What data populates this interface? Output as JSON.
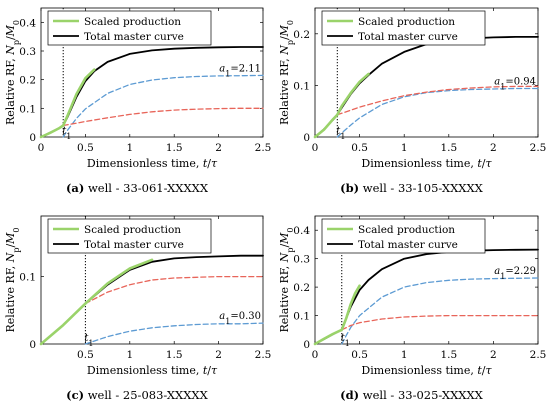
{
  "chart_data": [
    {
      "type": "line",
      "caption": "(a) well - 33-061-XXXXX",
      "ylabel": "Relative RF, Np/M0",
      "xlabel": "Dimensionless time, t/τ",
      "xlim": [
        0,
        2.5
      ],
      "ylim": [
        0,
        0.45
      ],
      "xticks": [
        0,
        0.5,
        1,
        1.5,
        2,
        2.5
      ],
      "xtick_labels": [
        "0",
        "0.5",
        "1",
        "1.5",
        "2",
        "2.5"
      ],
      "yticks": [
        0,
        0.1,
        0.2,
        0.3,
        0.4
      ],
      "ytick_labels": [
        "0",
        "0.1",
        "0.2",
        "0.3",
        "0.4"
      ],
      "t1": 0.25,
      "vline_label": "t1",
      "a1_label": "a1=2.11",
      "legend": [
        "Scaled production",
        "Total master curve"
      ],
      "series": [
        {
          "name": "Scaled production",
          "color": "#9ad36a",
          "style": "solid",
          "x": [
            0,
            0.1,
            0.2,
            0.25,
            0.3,
            0.4,
            0.5,
            0.6
          ],
          "y": [
            0,
            0.014,
            0.03,
            0.04,
            0.075,
            0.15,
            0.205,
            0.235
          ]
        },
        {
          "name": "Total master curve",
          "color": "#000000",
          "style": "solid",
          "x": [
            0,
            0.1,
            0.2,
            0.25,
            0.3,
            0.4,
            0.5,
            0.6,
            0.75,
            1.0,
            1.25,
            1.5,
            1.75,
            2.0,
            2.25,
            2.5
          ],
          "y": [
            0,
            0.015,
            0.03,
            0.04,
            0.07,
            0.14,
            0.195,
            0.23,
            0.262,
            0.29,
            0.302,
            0.308,
            0.311,
            0.313,
            0.314,
            0.314
          ]
        },
        {
          "color": "#5d9bd3",
          "style": "dashed",
          "x": [
            0.25,
            0.3,
            0.4,
            0.5,
            0.75,
            1.0,
            1.25,
            1.5,
            1.75,
            2.0,
            2.25,
            2.5
          ],
          "y": [
            0,
            0.024,
            0.065,
            0.098,
            0.152,
            0.183,
            0.199,
            0.207,
            0.211,
            0.213,
            0.214,
            0.215
          ]
        },
        {
          "color": "#e8655a",
          "style": "dashed",
          "x": [
            0.25,
            0.4,
            0.5,
            0.75,
            1.0,
            1.25,
            1.5,
            1.75,
            2.0,
            2.25,
            2.5
          ],
          "y": [
            0.04,
            0.048,
            0.054,
            0.067,
            0.079,
            0.088,
            0.094,
            0.097,
            0.099,
            0.1,
            0.1
          ]
        }
      ]
    },
    {
      "type": "line",
      "caption": "(b) well - 33-105-XXXXX",
      "ylabel": "Relative RF, Np/M0",
      "xlabel": "Dimensionless time, t/τ",
      "xlim": [
        0,
        2.5
      ],
      "ylim": [
        0,
        0.25
      ],
      "xticks": [
        0,
        0.5,
        1,
        1.5,
        2,
        2.5
      ],
      "xtick_labels": [
        "0",
        "0.5",
        "1",
        "1.5",
        "2",
        "2.5"
      ],
      "yticks": [
        0,
        0.1,
        0.2
      ],
      "ytick_labels": [
        "0",
        "0.1",
        "0.2"
      ],
      "t1": 0.25,
      "vline_label": "t1",
      "a1_label": "a1=0.94",
      "legend": [
        "Scaled production",
        "Total master curve"
      ],
      "series": [
        {
          "name": "Scaled production",
          "color": "#9ad36a",
          "style": "solid",
          "x": [
            0,
            0.1,
            0.2,
            0.25,
            0.3,
            0.4,
            0.5,
            0.6
          ],
          "y": [
            0,
            0.014,
            0.034,
            0.043,
            0.06,
            0.085,
            0.107,
            0.122
          ]
        },
        {
          "name": "Total master curve",
          "color": "#000000",
          "style": "solid",
          "x": [
            0,
            0.1,
            0.2,
            0.25,
            0.3,
            0.4,
            0.5,
            0.6,
            0.75,
            1.0,
            1.25,
            1.5,
            1.75,
            2.0,
            2.25,
            2.5
          ],
          "y": [
            0,
            0.015,
            0.033,
            0.043,
            0.057,
            0.083,
            0.104,
            0.12,
            0.142,
            0.165,
            0.18,
            0.187,
            0.191,
            0.193,
            0.194,
            0.194
          ]
        },
        {
          "color": "#5d9bd3",
          "style": "dashed",
          "x": [
            0.25,
            0.3,
            0.4,
            0.5,
            0.75,
            1.0,
            1.25,
            1.5,
            1.75,
            2.0,
            2.25,
            2.5
          ],
          "y": [
            0,
            0.008,
            0.023,
            0.037,
            0.063,
            0.078,
            0.086,
            0.09,
            0.092,
            0.093,
            0.094,
            0.094
          ]
        },
        {
          "color": "#e8655a",
          "style": "dashed",
          "x": [
            0.25,
            0.4,
            0.5,
            0.75,
            1.0,
            1.25,
            1.5,
            1.75,
            2.0,
            2.25,
            2.5
          ],
          "y": [
            0.043,
            0.052,
            0.058,
            0.07,
            0.08,
            0.087,
            0.092,
            0.095,
            0.097,
            0.098,
            0.098
          ]
        }
      ]
    },
    {
      "type": "line",
      "caption": "(c) well - 25-083-XXXXX",
      "ylabel": "Relative RF, Np/M0",
      "xlabel": "Dimensionless time, t/τ",
      "xlim": [
        0,
        2.5
      ],
      "ylim": [
        0,
        0.19
      ],
      "xticks": [
        0.5,
        1,
        1.5,
        2,
        2.5
      ],
      "xtick_labels": [
        "0.5",
        "1",
        "1.5",
        "2",
        "2.5"
      ],
      "yticks": [
        0,
        0.1
      ],
      "ytick_labels": [
        "0",
        "0.1"
      ],
      "t1": 0.5,
      "vline_label": "t1",
      "a1_label": "a1=0.30",
      "legend": [
        "Scaled production",
        "Total master curve"
      ],
      "series": [
        {
          "name": "Scaled production",
          "color": "#9ad36a",
          "style": "solid",
          "x": [
            0,
            0.25,
            0.5,
            0.75,
            1.0,
            1.25
          ],
          "y": [
            0,
            0.028,
            0.06,
            0.09,
            0.112,
            0.125
          ]
        },
        {
          "name": "Total master curve",
          "color": "#000000",
          "style": "solid",
          "x": [
            0,
            0.25,
            0.5,
            0.75,
            1.0,
            1.25,
            1.5,
            1.75,
            2.0,
            2.25,
            2.5
          ],
          "y": [
            0,
            0.028,
            0.06,
            0.088,
            0.11,
            0.122,
            0.127,
            0.129,
            0.13,
            0.131,
            0.131
          ]
        },
        {
          "color": "#5d9bd3",
          "style": "dashed",
          "x": [
            0.5,
            0.75,
            1.0,
            1.25,
            1.5,
            1.75,
            2.0,
            2.25,
            2.5
          ],
          "y": [
            0,
            0.011,
            0.019,
            0.024,
            0.027,
            0.029,
            0.03,
            0.03,
            0.031
          ]
        },
        {
          "color": "#e8655a",
          "style": "dashed",
          "x": [
            0.5,
            0.75,
            1.0,
            1.25,
            1.5,
            1.75,
            2.0,
            2.25,
            2.5
          ],
          "y": [
            0.06,
            0.077,
            0.088,
            0.095,
            0.098,
            0.099,
            0.1,
            0.1,
            0.1
          ]
        }
      ]
    },
    {
      "type": "line",
      "caption": "(d) well - 33-025-XXXXX",
      "ylabel": "Relative RF, Np/M0",
      "xlabel": "Dimensionless time, t/τ",
      "xlim": [
        0,
        2.5
      ],
      "ylim": [
        0,
        0.45
      ],
      "xticks": [
        0,
        0.5,
        1,
        1.5,
        2,
        2.5
      ],
      "xtick_labels": [
        "0",
        "0.5",
        "1",
        "1.5",
        "2",
        "2.5"
      ],
      "yticks": [
        0,
        0.1,
        0.2,
        0.3,
        0.4
      ],
      "ytick_labels": [
        "0",
        "0.1",
        "0.2",
        "0.3",
        "0.4"
      ],
      "t1": 0.3,
      "vline_label": "t1",
      "a1_label": "a1=2.29",
      "legend": [
        "Scaled production",
        "Total master curve"
      ],
      "series": [
        {
          "name": "Scaled production",
          "color": "#9ad36a",
          "style": "solid",
          "x": [
            0,
            0.1,
            0.2,
            0.3,
            0.35,
            0.4,
            0.45,
            0.5
          ],
          "y": [
            0,
            0.018,
            0.035,
            0.05,
            0.09,
            0.14,
            0.178,
            0.205
          ]
        },
        {
          "name": "Total master curve",
          "color": "#000000",
          "style": "solid",
          "x": [
            0,
            0.1,
            0.2,
            0.3,
            0.35,
            0.4,
            0.5,
            0.6,
            0.75,
            1.0,
            1.25,
            1.5,
            1.75,
            2.0,
            2.25,
            2.5
          ],
          "y": [
            0,
            0.017,
            0.034,
            0.05,
            0.09,
            0.13,
            0.19,
            0.225,
            0.263,
            0.3,
            0.316,
            0.324,
            0.328,
            0.33,
            0.331,
            0.332
          ]
        },
        {
          "color": "#5d9bd3",
          "style": "dashed",
          "x": [
            0.3,
            0.35,
            0.4,
            0.5,
            0.75,
            1.0,
            1.25,
            1.5,
            1.75,
            2.0,
            2.25,
            2.5
          ],
          "y": [
            0,
            0.03,
            0.058,
            0.1,
            0.165,
            0.2,
            0.216,
            0.224,
            0.228,
            0.23,
            0.231,
            0.232
          ]
        },
        {
          "color": "#e8655a",
          "style": "dashed",
          "x": [
            0.3,
            0.4,
            0.5,
            0.75,
            1.0,
            1.25,
            1.5,
            1.75,
            2.0,
            2.25,
            2.5
          ],
          "y": [
            0.05,
            0.065,
            0.075,
            0.088,
            0.095,
            0.098,
            0.1,
            0.1,
            0.1,
            0.1,
            0.1
          ]
        }
      ]
    }
  ]
}
